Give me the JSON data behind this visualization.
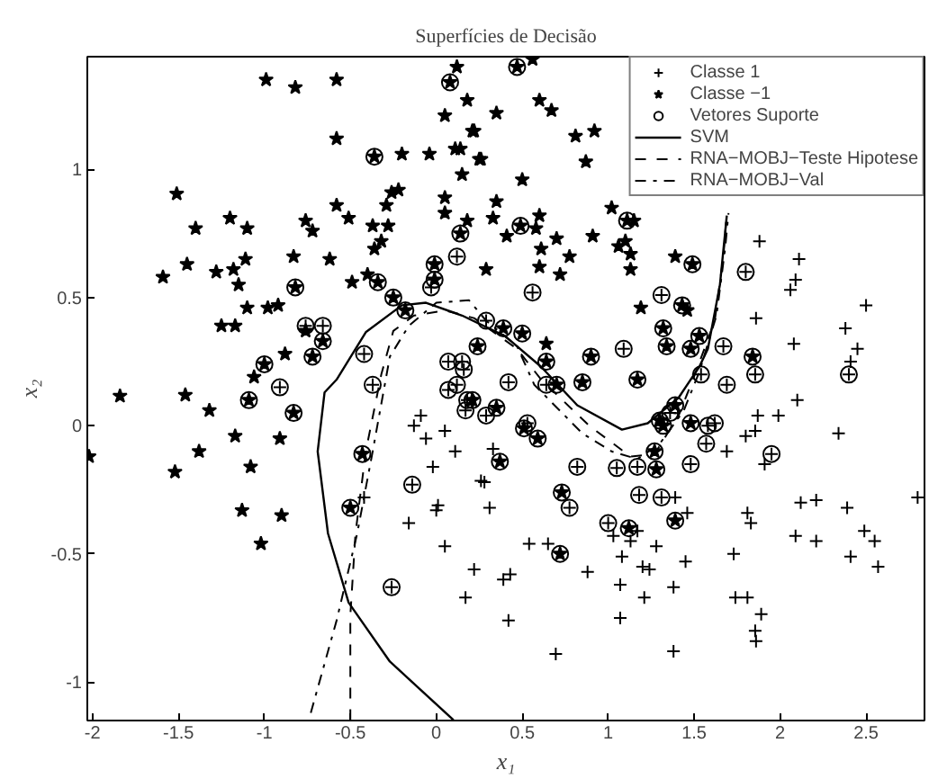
{
  "chart_data": {
    "type": "scatter",
    "title": "Superfícies de Decisão",
    "xlabel": "x₁",
    "ylabel": "x₂",
    "xlim": [
      -2.03,
      2.84
    ],
    "ylim": [
      -1.15,
      1.44
    ],
    "xticks": [
      -2,
      -1.5,
      -1,
      -0.5,
      0,
      0.5,
      1,
      1.5,
      2,
      2.5
    ],
    "yticks": [
      -1,
      -0.5,
      0,
      0.5,
      1
    ],
    "grid": false,
    "legend": "top right",
    "series": [
      {
        "name": "Classe 1",
        "marker": "cross",
        "color": "#000000",
        "x": [
          1.88,
          2.11,
          2.09,
          2.06,
          2.5,
          1.86,
          2.38,
          2.08,
          2.45,
          2.41,
          0.33,
          1.69,
          1.8,
          1.855,
          1.87,
          1.99,
          2.1,
          2.34,
          1.91,
          0.26,
          0.28,
          0.31,
          1.39,
          1.03,
          1.17,
          1.13,
          1.46,
          1.81,
          1.83,
          2.12,
          2.21,
          2.39,
          2.8,
          0.54,
          0.65,
          2.09,
          2.21,
          2.49,
          2.55,
          1.28,
          1.08,
          1.73,
          1.45,
          0.22,
          0.88,
          1.2,
          1.24,
          2.41,
          2.57,
          0.39,
          0.43,
          1.07,
          1.38,
          1.21,
          1.74,
          1.81,
          1.89,
          0.42,
          1.07,
          1.855,
          1.86,
          0.695,
          1.38,
          -0.09,
          -0.13,
          -0.06,
          0.05,
          0.11,
          -0.02,
          -0.42,
          0.01,
          0.0,
          -0.16,
          0.05,
          0.17,
          -0.76,
          -0.66,
          -0.42,
          -0.03,
          0.12,
          0.07,
          0.15,
          0.16,
          -0.91,
          -0.37,
          0.07,
          0.12,
          0.56,
          0.29,
          1.31,
          1.8,
          1.09,
          1.67,
          0.42,
          0.64,
          1.54,
          1.69,
          1.855,
          2.4,
          0.29,
          0.53,
          0.82,
          1.05,
          1.17,
          1.36,
          1.58,
          1.62,
          1.57,
          1.48,
          1.95,
          0.775,
          1.18,
          1.31,
          1.0,
          -0.14,
          -0.26,
          0.18,
          0.17
        ],
        "values": [
          0.72,
          0.65,
          0.57,
          0.53,
          0.47,
          0.42,
          0.38,
          0.32,
          0.3,
          0.25,
          -0.09,
          -0.1,
          -0.04,
          -0.02,
          0.04,
          0.04,
          0.1,
          -0.03,
          -0.15,
          -0.215,
          -0.22,
          -0.32,
          -0.28,
          -0.43,
          -0.41,
          -0.45,
          -0.34,
          -0.34,
          -0.38,
          -0.3,
          -0.29,
          -0.32,
          -0.28,
          -0.46,
          -0.46,
          -0.43,
          -0.45,
          -0.41,
          -0.45,
          -0.47,
          -0.51,
          -0.5,
          -0.53,
          -0.56,
          -0.57,
          -0.55,
          -0.56,
          -0.51,
          -0.55,
          -0.6,
          -0.58,
          -0.62,
          -0.63,
          -0.67,
          -0.67,
          -0.67,
          -0.735,
          -0.76,
          -0.75,
          -0.8,
          -0.84,
          -0.89,
          -0.88,
          0.04,
          0.0,
          -0.05,
          -0.02,
          -0.1,
          -0.16,
          -0.28,
          -0.31,
          -0.33,
          -0.38,
          -0.47,
          -0.67,
          0.39,
          0.39,
          0.28,
          0.54,
          0.66,
          0.25,
          0.25,
          0.22,
          0.15,
          0.16,
          0.14,
          0.16,
          0.52,
          0.41,
          0.51,
          0.6,
          0.3,
          0.31,
          0.17,
          0.16,
          0.2,
          0.16,
          0.2,
          0.2,
          0.04,
          0.01,
          -0.16,
          -0.165,
          -0.16,
          0.05,
          0.0,
          0.01,
          -0.07,
          -0.15,
          -0.11,
          -0.32,
          -0.27,
          -0.28,
          -0.38,
          -0.23,
          -0.63,
          0.1,
          0.06
        ]
      },
      {
        "name": "Classe −1",
        "marker": "star",
        "color": "#000000",
        "x": [
          -0.99,
          -0.82,
          -0.58,
          -0.58,
          -1.51,
          -1.4,
          -1.2,
          -1.1,
          -1.59,
          -1.45,
          -1.28,
          -1.18,
          -1.11,
          -1.15,
          -1.1,
          -0.98,
          -0.92,
          -1.25,
          -1.17,
          -0.83,
          -0.76,
          -0.72,
          -0.58,
          -0.51,
          -0.62,
          -0.49,
          -0.37,
          -0.28,
          -0.29,
          -0.26,
          -0.22,
          -0.2,
          -0.04,
          -0.32,
          -0.36,
          0.12,
          0.05,
          0.18,
          0.21,
          0.11,
          0.14,
          0.25,
          0.15,
          0.05,
          0.05,
          0.18,
          0.29,
          -0.4,
          -0.88,
          -1.06,
          -0.76,
          0.56,
          0.6,
          0.67,
          0.35,
          0.22,
          0.81,
          0.92,
          0.26,
          0.87,
          0.5,
          0.35,
          0.33,
          0.6,
          0.58,
          0.41,
          0.7,
          0.91,
          0.61,
          1.06,
          1.1,
          1.15,
          1.02,
          1.13,
          1.13,
          0.775,
          0.6,
          0.72,
          1.39,
          1.19,
          1.46,
          0.64,
          -1.84,
          -1.46,
          -2.02,
          -1.32,
          -1.17,
          -1.38,
          -1.52,
          -1.08,
          -0.91,
          -1.13,
          -0.9,
          -1.02,
          -0.36,
          0.08,
          0.14,
          -0.82,
          -0.34,
          -1.0,
          -0.66,
          -0.72,
          -0.25,
          -0.18,
          0.24,
          -0.01,
          -0.01,
          0.47,
          0.49,
          1.11,
          1.49,
          1.43,
          0.39,
          0.5,
          0.64,
          0.9,
          1.32,
          1.34,
          1.53,
          1.48,
          1.84,
          0.7,
          0.85,
          1.17,
          0.21,
          0.35,
          0.51,
          0.59,
          0.37,
          1.27,
          1.28,
          1.3,
          1.32,
          1.39,
          1.48,
          0.73,
          1.12,
          1.39,
          0.72,
          -1.09,
          -0.83,
          -0.43,
          -0.5
        ],
        "values": [
          1.35,
          1.32,
          1.35,
          1.12,
          0.905,
          0.77,
          0.81,
          0.77,
          0.58,
          0.63,
          0.6,
          0.61,
          0.65,
          0.55,
          0.46,
          0.46,
          0.47,
          0.39,
          0.39,
          0.66,
          0.8,
          0.76,
          0.86,
          0.81,
          0.65,
          0.56,
          0.78,
          0.78,
          0.86,
          0.91,
          0.92,
          1.06,
          1.06,
          0.72,
          0.69,
          1.4,
          1.21,
          1.27,
          1.15,
          1.08,
          1.08,
          1.04,
          0.98,
          0.89,
          0.83,
          0.8,
          0.61,
          0.59,
          0.28,
          0.19,
          0.37,
          1.43,
          1.27,
          1.23,
          1.22,
          1.15,
          1.13,
          1.15,
          1.04,
          1.03,
          0.96,
          0.875,
          0.81,
          0.82,
          0.77,
          0.74,
          0.73,
          0.74,
          0.69,
          0.7,
          0.72,
          0.8,
          0.85,
          0.67,
          0.61,
          0.66,
          0.62,
          0.59,
          0.66,
          0.46,
          0.45,
          0.32,
          0.116,
          0.12,
          -0.12,
          0.06,
          -0.04,
          -0.1,
          -0.18,
          -0.16,
          -0.05,
          -0.33,
          -0.35,
          -0.46,
          1.05,
          1.34,
          0.75,
          0.54,
          0.56,
          0.24,
          0.33,
          0.27,
          0.5,
          0.45,
          0.31,
          0.63,
          0.57,
          1.4,
          0.78,
          0.8,
          0.63,
          0.47,
          0.38,
          0.36,
          0.25,
          0.27,
          0.38,
          0.31,
          0.35,
          0.3,
          0.27,
          0.16,
          0.17,
          0.18,
          0.1,
          0.07,
          -0.01,
          -0.05,
          -0.14,
          -0.1,
          -0.17,
          0.02,
          0.0,
          0.08,
          0.01,
          -0.26,
          -0.4,
          -0.37,
          -0.5,
          0.1,
          0.05,
          -0.11,
          -0.32
        ]
      },
      {
        "name": "Vetores Suporte",
        "marker": "circle",
        "color": "#000000",
        "x": [
          -0.76,
          -0.66,
          -0.42,
          -0.03,
          0.12,
          0.07,
          0.15,
          0.16,
          -0.91,
          -0.37,
          0.07,
          0.12,
          0.56,
          0.29,
          1.31,
          1.8,
          1.09,
          1.67,
          0.42,
          0.64,
          1.54,
          1.69,
          1.855,
          2.4,
          0.29,
          0.53,
          0.82,
          1.05,
          1.17,
          1.36,
          1.58,
          1.62,
          1.57,
          1.48,
          1.95,
          0.775,
          1.18,
          1.31,
          1.0,
          -0.14,
          -0.26,
          0.18,
          0.17,
          -0.36,
          0.08,
          0.14,
          -0.82,
          -0.34,
          -1.0,
          -0.66,
          -0.72,
          -0.25,
          -0.18,
          0.24,
          -0.01,
          -0.01,
          0.47,
          0.49,
          1.11,
          1.49,
          1.43,
          0.39,
          0.5,
          0.64,
          0.9,
          1.32,
          1.34,
          1.53,
          1.48,
          1.84,
          0.7,
          0.85,
          1.17,
          0.21,
          0.35,
          0.51,
          0.59,
          0.37,
          1.27,
          1.28,
          1.3,
          1.32,
          1.39,
          1.48,
          0.73,
          1.12,
          1.39,
          0.72,
          -1.09,
          -0.83,
          -0.43,
          -0.5
        ],
        "values": [
          0.39,
          0.39,
          0.28,
          0.54,
          0.66,
          0.25,
          0.25,
          0.22,
          0.15,
          0.16,
          0.14,
          0.16,
          0.52,
          0.41,
          0.51,
          0.6,
          0.3,
          0.31,
          0.17,
          0.16,
          0.2,
          0.16,
          0.2,
          0.2,
          0.04,
          0.01,
          -0.16,
          -0.165,
          -0.16,
          0.05,
          0.0,
          0.01,
          -0.07,
          -0.15,
          -0.11,
          -0.32,
          -0.27,
          -0.28,
          -0.38,
          -0.23,
          -0.63,
          0.1,
          0.06,
          1.05,
          1.34,
          0.75,
          0.54,
          0.56,
          0.24,
          0.33,
          0.27,
          0.5,
          0.45,
          0.31,
          0.63,
          0.57,
          1.4,
          0.78,
          0.8,
          0.63,
          0.47,
          0.38,
          0.36,
          0.25,
          0.27,
          0.38,
          0.31,
          0.35,
          0.3,
          0.27,
          0.16,
          0.17,
          0.18,
          0.1,
          0.07,
          -0.01,
          -0.05,
          -0.14,
          -0.1,
          -0.17,
          0.02,
          0.0,
          0.08,
          0.01,
          -0.26,
          -0.4,
          -0.37,
          -0.5,
          0.1,
          0.05,
          -0.11,
          -0.32
        ]
      },
      {
        "name": "SVM",
        "type": "line",
        "line_style": "solid",
        "color": "#000000",
        "x": [
          0.1,
          -0.27,
          -0.51,
          -0.63,
          -0.69,
          -0.65,
          -0.58,
          -0.41,
          -0.2,
          -0.06,
          0.15,
          0.4,
          0.61,
          0.82,
          1.08,
          1.23,
          1.41,
          1.53,
          1.58,
          1.65,
          1.69
        ],
        "values": [
          -1.148,
          -0.92,
          -0.69,
          -0.42,
          -0.1,
          0.13,
          0.18,
          0.365,
          0.47,
          0.48,
          0.43,
          0.35,
          0.23,
          0.08,
          -0.015,
          0.01,
          0.11,
          0.23,
          0.3,
          0.55,
          0.82
        ]
      },
      {
        "name": "RNA−MOBJ−Teste Hipotese",
        "type": "line",
        "line_style": "dashed",
        "color": "#000000",
        "x": [
          -0.5,
          -0.5,
          -0.47,
          -0.41,
          -0.32,
          -0.25,
          -0.13,
          0.05,
          0.22,
          0.47,
          0.61,
          0.89,
          1.13,
          1.27,
          1.41,
          1.51,
          1.62,
          1.67,
          1.69
        ],
        "values": [
          -1.148,
          -0.74,
          -0.42,
          -0.1,
          0.2,
          0.37,
          0.43,
          0.45,
          0.42,
          0.3,
          0.18,
          0.0,
          -0.12,
          -0.11,
          0.04,
          0.21,
          0.41,
          0.66,
          0.83
        ]
      },
      {
        "name": "RNA−MOBJ−Val",
        "type": "line",
        "line_style": "dashdot",
        "color": "#000000",
        "x": [
          -0.73,
          -0.58,
          -0.46,
          -0.37,
          -0.27,
          -0.16,
          0.0,
          0.19,
          0.29,
          0.47,
          0.57,
          0.85,
          1.02,
          1.17,
          1.3,
          1.44,
          1.53,
          1.63,
          1.68,
          1.7
        ],
        "values": [
          -1.12,
          -0.76,
          -0.42,
          -0.1,
          0.27,
          0.39,
          0.48,
          0.49,
          0.41,
          0.31,
          0.16,
          -0.03,
          -0.1,
          -0.13,
          -0.07,
          0.06,
          0.21,
          0.43,
          0.69,
          0.83
        ]
      }
    ]
  }
}
